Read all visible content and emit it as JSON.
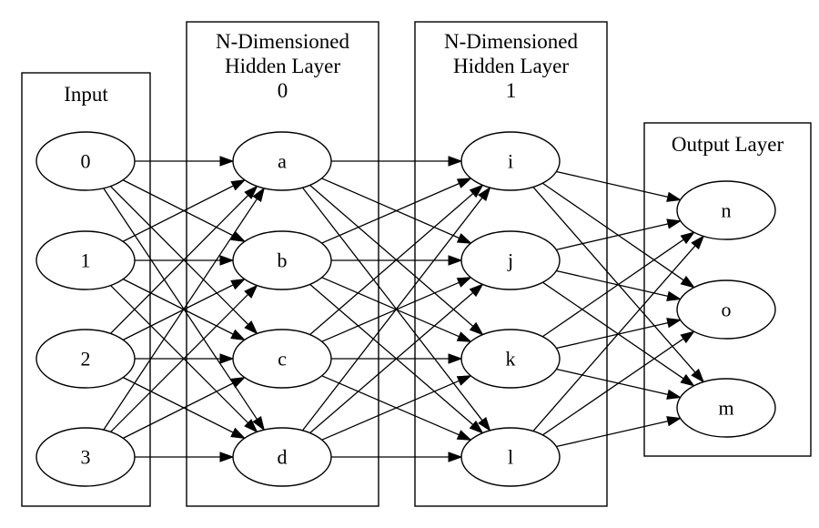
{
  "clusters": [
    {
      "id": "input",
      "title_lines": [
        "Input"
      ]
    },
    {
      "id": "hidden0",
      "title_lines": [
        "N-Dimensioned",
        "Hidden Layer",
        "0"
      ]
    },
    {
      "id": "hidden1",
      "title_lines": [
        "N-Dimensioned",
        "Hidden Layer",
        "1"
      ]
    },
    {
      "id": "output",
      "title_lines": [
        "Output Layer"
      ]
    }
  ],
  "nodes": {
    "n0": "0",
    "n1": "1",
    "n2": "2",
    "n3": "3",
    "a": "a",
    "b": "b",
    "c": "c",
    "d": "d",
    "i": "i",
    "j": "j",
    "k": "k",
    "l": "l",
    "n": "n",
    "o": "o",
    "m": "m"
  },
  "edges": [
    [
      "n0",
      "a"
    ],
    [
      "n0",
      "b"
    ],
    [
      "n0",
      "c"
    ],
    [
      "n0",
      "d"
    ],
    [
      "n1",
      "a"
    ],
    [
      "n1",
      "b"
    ],
    [
      "n1",
      "c"
    ],
    [
      "n1",
      "d"
    ],
    [
      "n2",
      "a"
    ],
    [
      "n2",
      "b"
    ],
    [
      "n2",
      "c"
    ],
    [
      "n2",
      "d"
    ],
    [
      "n3",
      "a"
    ],
    [
      "n3",
      "b"
    ],
    [
      "n3",
      "c"
    ],
    [
      "n3",
      "d"
    ],
    [
      "a",
      "i"
    ],
    [
      "a",
      "j"
    ],
    [
      "a",
      "k"
    ],
    [
      "a",
      "l"
    ],
    [
      "b",
      "i"
    ],
    [
      "b",
      "j"
    ],
    [
      "b",
      "k"
    ],
    [
      "b",
      "l"
    ],
    [
      "c",
      "i"
    ],
    [
      "c",
      "j"
    ],
    [
      "c",
      "k"
    ],
    [
      "c",
      "l"
    ],
    [
      "d",
      "i"
    ],
    [
      "d",
      "j"
    ],
    [
      "d",
      "k"
    ],
    [
      "d",
      "l"
    ],
    [
      "i",
      "n"
    ],
    [
      "i",
      "o"
    ],
    [
      "i",
      "m"
    ],
    [
      "j",
      "n"
    ],
    [
      "j",
      "o"
    ],
    [
      "j",
      "m"
    ],
    [
      "k",
      "n"
    ],
    [
      "k",
      "o"
    ],
    [
      "k",
      "m"
    ],
    [
      "l",
      "n"
    ],
    [
      "l",
      "o"
    ],
    [
      "l",
      "m"
    ]
  ]
}
